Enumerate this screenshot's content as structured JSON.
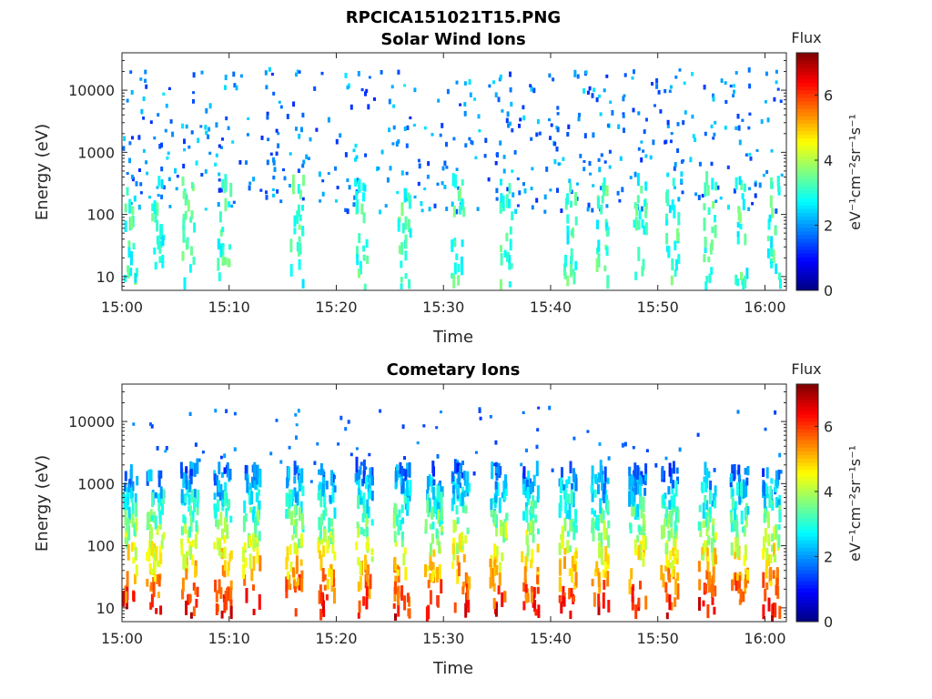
{
  "figure": {
    "title": "RPCICA151021T15.PNG"
  },
  "chart_data": [
    {
      "type": "heatmap",
      "title": "Solar Wind Ions",
      "xlabel": "Time",
      "ylabel": "Energy (eV)",
      "x_range": [
        "15:00",
        "16:02"
      ],
      "x_ticks": [
        "15:00",
        "15:10",
        "15:20",
        "15:30",
        "15:40",
        "15:50",
        "16:00"
      ],
      "y_scale": "log",
      "y_range": [
        6,
        40000
      ],
      "y_ticks": [
        "10",
        "100",
        "1000",
        "10000"
      ],
      "colorbar": {
        "label_top": "Flux",
        "unit_label": "eV⁻¹cm⁻²sr⁻¹s⁻¹",
        "range": [
          0,
          7.3
        ],
        "ticks": [
          "0",
          "2",
          "4",
          "6"
        ]
      },
      "description_values": {
        "bursts_minutes": [
          0.5,
          3.0,
          5.8,
          9.2,
          16.0,
          22.0,
          26.0,
          31.0,
          35.5,
          41.5,
          44.5,
          48.0,
          51.0,
          54.5,
          57.5,
          60.5
        ],
        "scatter_energy_range_eV": [
          100,
          20000
        ],
        "low_energy_flux_level": 3
      }
    },
    {
      "type": "heatmap",
      "title": "Cometary Ions",
      "xlabel": "Time",
      "ylabel": "Energy (eV)",
      "x_range": [
        "15:00",
        "16:02"
      ],
      "x_ticks": [
        "15:00",
        "15:10",
        "15:20",
        "15:30",
        "15:40",
        "15:50",
        "16:00"
      ],
      "y_scale": "log",
      "y_range": [
        6,
        40000
      ],
      "y_ticks": [
        "10",
        "100",
        "1000",
        "10000"
      ],
      "colorbar": {
        "label_top": "Flux",
        "unit_label": "eV⁻¹cm⁻²sr⁻¹s⁻¹",
        "range": [
          0,
          7.3
        ],
        "ticks": [
          "0",
          "2",
          "4",
          "6"
        ]
      },
      "description_values": {
        "bursts_minutes": [
          0.5,
          3.0,
          6.2,
          9.3,
          12.0,
          16.0,
          19.0,
          22.5,
          26.0,
          29.0,
          31.5,
          35.0,
          38.0,
          41.5,
          44.5,
          48.0,
          51.0,
          54.5,
          57.5,
          60.5
        ],
        "peak_flux_level": 6.5,
        "peak_energy_range_eV": [
          6,
          100
        ]
      }
    }
  ]
}
